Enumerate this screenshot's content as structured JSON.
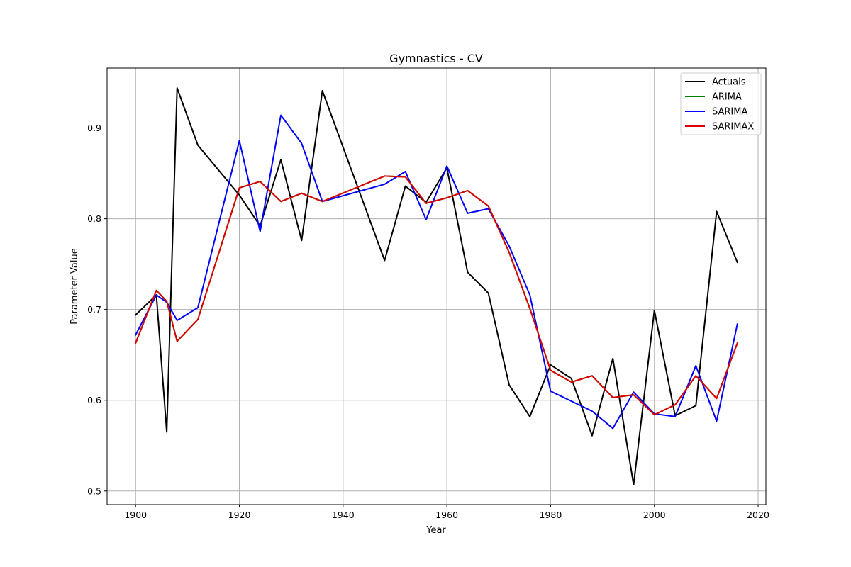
{
  "chart_data": {
    "type": "line",
    "title": "Gymnastics - CV",
    "xlabel": "Year",
    "ylabel": "Parameter Value",
    "xlim": [
      1894.5,
      2021.5
    ],
    "ylim": [
      0.485,
      0.966
    ],
    "xticks": [
      1900,
      1920,
      1940,
      1960,
      1980,
      2000,
      2020
    ],
    "yticks": [
      0.5,
      0.6,
      0.7,
      0.8,
      0.9
    ],
    "ytick_labels": [
      "0.5",
      "0.6",
      "0.7",
      "0.8",
      "0.9"
    ],
    "grid": true,
    "legend_position": "top-right",
    "series": [
      {
        "name": "Actuals",
        "color": "#000000",
        "x": [
          1900,
          1904,
          1906,
          1908,
          1912,
          1920,
          1924,
          1928,
          1932,
          1936,
          1948,
          1952,
          1956,
          1960,
          1964,
          1968,
          1972,
          1976,
          1980,
          1984,
          1988,
          1992,
          1996,
          2000,
          2004,
          2008,
          2012,
          2016
        ],
        "values": [
          0.694,
          0.716,
          0.565,
          0.944,
          0.881,
          0.826,
          0.792,
          0.865,
          0.776,
          0.941,
          0.754,
          0.836,
          0.818,
          0.856,
          0.741,
          0.718,
          0.617,
          0.582,
          0.639,
          0.624,
          0.561,
          0.646,
          0.507,
          0.699,
          0.583,
          0.594,
          0.808,
          0.752
        ]
      },
      {
        "name": "ARIMA",
        "color": "#008000",
        "x": [
          1900,
          1904,
          1906,
          1908,
          1912,
          1920,
          1924,
          1928,
          1932,
          1936,
          1948,
          1952,
          1956,
          1960,
          1964,
          1968,
          1972,
          1976,
          1980,
          1984,
          1988,
          1992,
          1996,
          2000,
          2004,
          2008,
          2012,
          2016
        ],
        "values": [
          0.663,
          0.721,
          0.709,
          0.665,
          0.689,
          0.834,
          0.841,
          0.819,
          0.828,
          0.819,
          0.847,
          0.846,
          0.817,
          0.823,
          0.831,
          0.814,
          0.763,
          0.701,
          0.633,
          0.62,
          0.627,
          0.603,
          0.606,
          0.584,
          0.595,
          0.627,
          0.602,
          0.663
        ]
      },
      {
        "name": "SARIMA",
        "color": "#0000ff",
        "x": [
          1900,
          1904,
          1906,
          1908,
          1912,
          1920,
          1924,
          1928,
          1932,
          1936,
          1948,
          1952,
          1956,
          1960,
          1964,
          1968,
          1972,
          1976,
          1980,
          1984,
          1988,
          1992,
          1996,
          2000,
          2004,
          2008,
          2012,
          2016
        ],
        "values": [
          0.672,
          0.716,
          0.708,
          0.688,
          0.702,
          0.886,
          0.786,
          0.914,
          0.883,
          0.819,
          0.838,
          0.852,
          0.799,
          0.858,
          0.806,
          0.811,
          0.77,
          0.716,
          0.61,
          0.599,
          0.588,
          0.569,
          0.609,
          0.585,
          0.582,
          0.638,
          0.577,
          0.684
        ]
      },
      {
        "name": "SARIMAX",
        "color": "#dd0000",
        "x": [
          1900,
          1904,
          1906,
          1908,
          1912,
          1920,
          1924,
          1928,
          1932,
          1936,
          1948,
          1952,
          1956,
          1960,
          1964,
          1968,
          1972,
          1976,
          1980,
          1984,
          1988,
          1992,
          1996,
          2000,
          2004,
          2008,
          2012,
          2016
        ],
        "values": [
          0.663,
          0.721,
          0.709,
          0.665,
          0.689,
          0.834,
          0.841,
          0.819,
          0.828,
          0.819,
          0.847,
          0.846,
          0.817,
          0.823,
          0.831,
          0.814,
          0.763,
          0.701,
          0.633,
          0.62,
          0.627,
          0.603,
          0.606,
          0.584,
          0.595,
          0.627,
          0.602,
          0.663
        ]
      }
    ]
  }
}
